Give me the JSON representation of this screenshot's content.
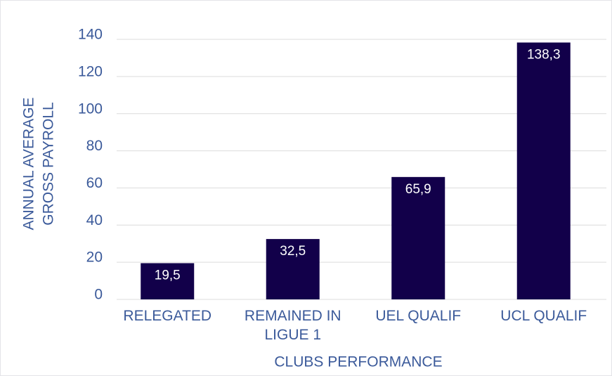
{
  "chart_data": {
    "type": "bar",
    "categories": [
      "RELEGATED",
      "REMAINED IN LIGUE 1",
      "UEL QUALIF",
      "UCL QUALIF"
    ],
    "values": [
      19.5,
      32.5,
      65.9,
      138.3
    ],
    "value_labels": [
      "19,5",
      "32,5",
      "65,9",
      "138,3"
    ],
    "color": "#12004a",
    "y_label": [
      "ANNUAL AVERAGE",
      "GROSS PAYROLL"
    ],
    "x_label": "CLUBS PERFORMANCE",
    "ylim": [
      0,
      140
    ],
    "yticks": [
      0,
      20,
      40,
      60,
      80,
      100,
      120,
      140
    ],
    "grid": true
  }
}
